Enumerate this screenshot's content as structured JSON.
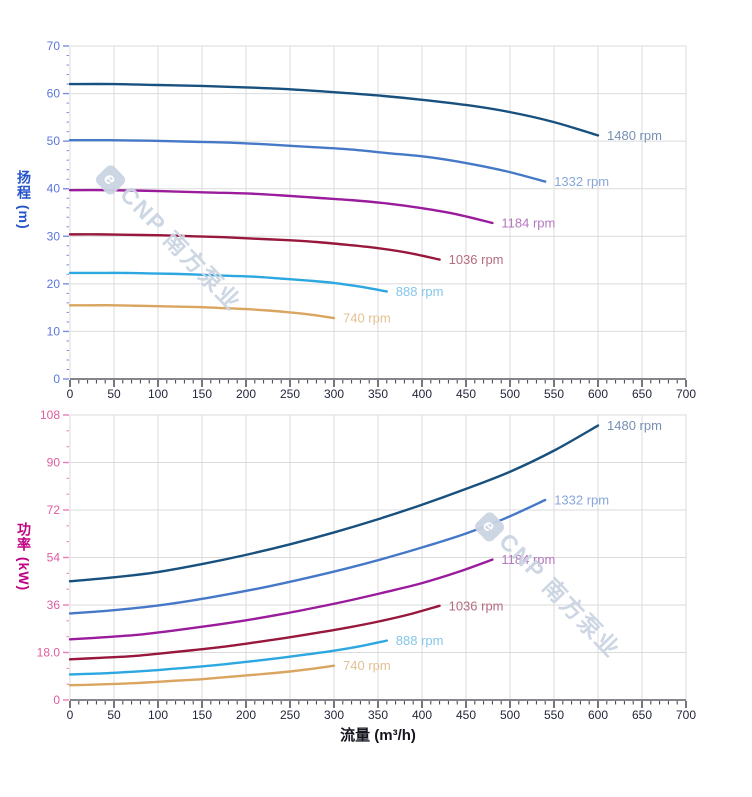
{
  "watermark": {
    "logo": "e",
    "text": "CNP 南方泵业"
  },
  "colors": {
    "background": "#FFFFFF",
    "grid": "#DBDBDB",
    "plot_border": "#DBDBDB",
    "x_axis_line": "#3C3C46",
    "x_tick_label": "#23263B",
    "x_title": "#15151F",
    "watermark": "#CBD4E2"
  },
  "chart_data": [
    {
      "type": "line",
      "title": "",
      "xlabel": "",
      "ylabel": "扬程 (m)",
      "xlim": [
        0,
        700
      ],
      "ylim": [
        0,
        70
      ],
      "x_major": 50,
      "x_minor": 10,
      "y_major": 10,
      "y_minor": 2,
      "grid": "on",
      "legend_position": "end-of-curve",
      "x_tick_labels": [
        "0",
        "50",
        "100",
        "150",
        "200",
        "250",
        "300",
        "350",
        "400",
        "450",
        "500",
        "550",
        "600",
        "650",
        "700"
      ],
      "y_tick_labels": [
        "0",
        "10",
        "20",
        "30",
        "40",
        "50",
        "60",
        "70"
      ],
      "axis": {
        "tick": "#7B8FE0",
        "tick_label": "#5B76DC",
        "title": "#2553C9"
      },
      "series": [
        {
          "name": "1480 rpm",
          "color": "#18507E",
          "label_color": "#7690B4",
          "points": [
            [
              0,
              62
            ],
            [
              50,
              62
            ],
            [
              100,
              61.8
            ],
            [
              150,
              61.6
            ],
            [
              200,
              61.3
            ],
            [
              250,
              60.9
            ],
            [
              300,
              60.3
            ],
            [
              350,
              59.6
            ],
            [
              400,
              58.7
            ],
            [
              450,
              57.6
            ],
            [
              500,
              56.1
            ],
            [
              550,
              54.0
            ],
            [
              600,
              51.2
            ]
          ]
        },
        {
          "name": "1332 rpm",
          "color": "#4678C8",
          "label_color": "#88A7DA",
          "points": [
            [
              0,
              50.2
            ],
            [
              45,
              50.2
            ],
            [
              90,
              50.1
            ],
            [
              135,
              49.9
            ],
            [
              180,
              49.7
            ],
            [
              225,
              49.3
            ],
            [
              270,
              48.8
            ],
            [
              315,
              48.3
            ],
            [
              360,
              47.5
            ],
            [
              405,
              46.7
            ],
            [
              450,
              45.4
            ],
            [
              495,
              43.7
            ],
            [
              540,
              41.5
            ]
          ]
        },
        {
          "name": "1184 rpm",
          "color": "#9A1C9C",
          "label_color": "#B577BF",
          "points": [
            [
              0,
              39.7
            ],
            [
              40,
              39.7
            ],
            [
              80,
              39.6
            ],
            [
              120,
              39.4
            ],
            [
              160,
              39.2
            ],
            [
              200,
              39.0
            ],
            [
              240,
              38.6
            ],
            [
              280,
              38.1
            ],
            [
              320,
              37.6
            ],
            [
              360,
              36.9
            ],
            [
              400,
              35.9
            ],
            [
              440,
              34.6
            ],
            [
              480,
              32.8
            ]
          ]
        },
        {
          "name": "1036 rpm",
          "color": "#98173C",
          "label_color": "#B56C7F",
          "points": [
            [
              0,
              30.4
            ],
            [
              35,
              30.4
            ],
            [
              70,
              30.3
            ],
            [
              105,
              30.2
            ],
            [
              140,
              30.0
            ],
            [
              175,
              29.8
            ],
            [
              210,
              29.5
            ],
            [
              245,
              29.2
            ],
            [
              280,
              28.8
            ],
            [
              315,
              28.2
            ],
            [
              350,
              27.5
            ],
            [
              385,
              26.5
            ],
            [
              420,
              25.1
            ]
          ]
        },
        {
          "name": "888 rpm",
          "color": "#2CA7E0",
          "label_color": "#85C6EA",
          "points": [
            [
              0,
              22.3
            ],
            [
              30,
              22.3
            ],
            [
              60,
              22.3
            ],
            [
              90,
              22.2
            ],
            [
              120,
              22.1
            ],
            [
              150,
              21.9
            ],
            [
              180,
              21.7
            ],
            [
              210,
              21.5
            ],
            [
              240,
              21.1
            ],
            [
              270,
              20.7
            ],
            [
              300,
              20.2
            ],
            [
              330,
              19.4
            ],
            [
              360,
              18.4
            ]
          ]
        },
        {
          "name": "740 rpm",
          "color": "#D9A55F",
          "label_color": "#E2C193",
          "points": [
            [
              0,
              15.5
            ],
            [
              25,
              15.5
            ],
            [
              50,
              15.5
            ],
            [
              75,
              15.4
            ],
            [
              100,
              15.3
            ],
            [
              125,
              15.2
            ],
            [
              150,
              15.1
            ],
            [
              175,
              14.9
            ],
            [
              200,
              14.7
            ],
            [
              225,
              14.4
            ],
            [
              250,
              14.0
            ],
            [
              275,
              13.5
            ],
            [
              300,
              12.8
            ]
          ]
        }
      ]
    },
    {
      "type": "line",
      "title": "",
      "xlabel": "流量 (m³/h)",
      "ylabel": "功率 (kW)",
      "xlim": [
        0,
        700
      ],
      "ylim": [
        0,
        108
      ],
      "x_major": 50,
      "x_minor": 10,
      "y_major": 18,
      "y_minor": 6,
      "grid": "on",
      "legend_position": "end-of-curve",
      "x_tick_labels": [
        "0",
        "50",
        "100",
        "150",
        "200",
        "250",
        "300",
        "350",
        "400",
        "450",
        "500",
        "550",
        "600",
        "650",
        "700"
      ],
      "y_tick_labels": [
        "0",
        "18.0",
        "36",
        "54",
        "72",
        "90",
        "108"
      ],
      "axis": {
        "tick": "#E87FB6",
        "tick_label": "#DF5CA0",
        "title": "#C00382"
      },
      "series": [
        {
          "name": "1480 rpm",
          "color": "#18507E",
          "label_color": "#7690B4",
          "points": [
            [
              0,
              45
            ],
            [
              50,
              46.5
            ],
            [
              100,
              48.5
            ],
            [
              150,
              51.5
            ],
            [
              200,
              55
            ],
            [
              250,
              59
            ],
            [
              300,
              63.5
            ],
            [
              350,
              68.5
            ],
            [
              400,
              74
            ],
            [
              450,
              80
            ],
            [
              500,
              86.5
            ],
            [
              550,
              94.5
            ],
            [
              600,
              104
            ]
          ]
        },
        {
          "name": "1332 rpm",
          "color": "#4678C8",
          "label_color": "#88A7DA",
          "points": [
            [
              0,
              32.8
            ],
            [
              45,
              33.9
            ],
            [
              90,
              35.4
            ],
            [
              135,
              37.5
            ],
            [
              180,
              40.1
            ],
            [
              225,
              43.0
            ],
            [
              270,
              46.3
            ],
            [
              315,
              49.9
            ],
            [
              360,
              53.9
            ],
            [
              405,
              58.3
            ],
            [
              450,
              63.1
            ],
            [
              495,
              68.9
            ],
            [
              540,
              75.8
            ]
          ]
        },
        {
          "name": "1184 rpm",
          "color": "#9A1C9C",
          "label_color": "#B577BF",
          "points": [
            [
              0,
              23.0
            ],
            [
              40,
              23.8
            ],
            [
              80,
              24.8
            ],
            [
              120,
              26.4
            ],
            [
              160,
              28.2
            ],
            [
              200,
              30.2
            ],
            [
              240,
              32.5
            ],
            [
              280,
              35.1
            ],
            [
              320,
              37.9
            ],
            [
              360,
              41.0
            ],
            [
              400,
              44.3
            ],
            [
              440,
              48.4
            ],
            [
              480,
              53.2
            ]
          ]
        },
        {
          "name": "1036 rpm",
          "color": "#98173C",
          "label_color": "#B56C7F",
          "points": [
            [
              0,
              15.4
            ],
            [
              35,
              16.0
            ],
            [
              70,
              16.6
            ],
            [
              105,
              17.7
            ],
            [
              140,
              18.9
            ],
            [
              175,
              20.2
            ],
            [
              210,
              21.8
            ],
            [
              245,
              23.5
            ],
            [
              280,
              25.4
            ],
            [
              315,
              27.4
            ],
            [
              350,
              29.7
            ],
            [
              385,
              32.4
            ],
            [
              420,
              35.7
            ]
          ]
        },
        {
          "name": "888 rpm",
          "color": "#2CA7E0",
          "label_color": "#85C6EA",
          "points": [
            [
              0,
              9.7
            ],
            [
              30,
              10.0
            ],
            [
              60,
              10.5
            ],
            [
              90,
              11.1
            ],
            [
              120,
              11.9
            ],
            [
              150,
              12.7
            ],
            [
              180,
              13.7
            ],
            [
              210,
              14.8
            ],
            [
              240,
              16.0
            ],
            [
              270,
              17.3
            ],
            [
              300,
              18.7
            ],
            [
              330,
              20.4
            ],
            [
              360,
              22.5
            ]
          ]
        },
        {
          "name": "740 rpm",
          "color": "#D9A55F",
          "label_color": "#E2C193",
          "points": [
            [
              0,
              5.6
            ],
            [
              25,
              5.8
            ],
            [
              50,
              6.1
            ],
            [
              75,
              6.4
            ],
            [
              100,
              6.9
            ],
            [
              125,
              7.4
            ],
            [
              150,
              7.9
            ],
            [
              175,
              8.6
            ],
            [
              200,
              9.3
            ],
            [
              225,
              10.0
            ],
            [
              250,
              10.8
            ],
            [
              275,
              11.8
            ],
            [
              300,
              13.0
            ]
          ]
        }
      ]
    }
  ]
}
